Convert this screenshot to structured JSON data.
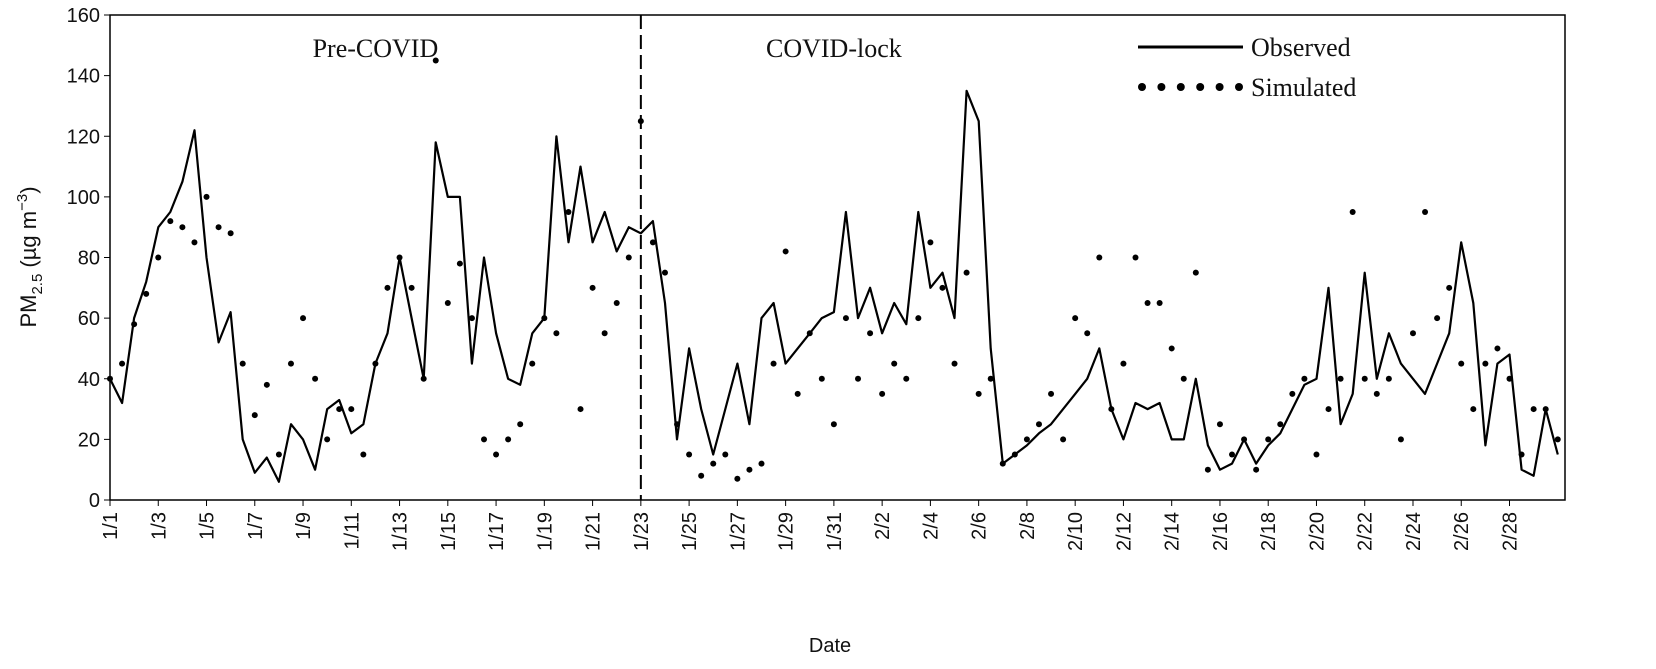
{
  "chart_data": {
    "type": "line",
    "x_label": "Date",
    "y_label": [
      "PM",
      "2.5",
      " (µg m",
      "−3",
      ")"
    ],
    "annotations": [
      {
        "text": "Pre-COVID",
        "x": 12
      },
      {
        "text": "COVID-lock",
        "x": 31
      }
    ],
    "vline": 23,
    "legend": "top-right",
    "x": [
      1,
      1.5,
      2,
      2.5,
      3,
      3.5,
      4,
      4.5,
      5,
      5.5,
      6,
      6.5,
      7,
      7.5,
      8,
      8.5,
      9,
      9.5,
      10,
      10.5,
      11,
      11.5,
      12,
      12.5,
      13,
      13.5,
      14,
      14.5,
      15,
      15.5,
      16,
      16.5,
      17,
      17.5,
      18,
      18.5,
      19,
      19.5,
      20,
      20.5,
      21,
      21.5,
      22,
      22.5,
      23,
      23.5,
      24,
      24.5,
      25,
      25.5,
      26,
      26.5,
      27,
      27.5,
      28,
      28.5,
      29,
      29.5,
      30,
      30.5,
      31,
      31.5,
      32,
      32.5,
      33,
      33.5,
      34,
      34.5,
      35,
      35.5,
      36,
      36.5,
      37,
      37.5,
      38,
      38.5,
      39,
      39.5,
      40,
      40.5,
      41,
      41.5,
      42,
      42.5,
      43,
      43.5,
      44,
      44.5,
      45,
      45.5,
      46,
      46.5,
      47,
      47.5,
      48,
      48.5,
      49,
      49.5,
      50,
      50.5,
      51,
      51.5,
      52,
      52.5,
      53,
      53.5,
      54,
      54.5,
      55,
      55.5,
      56,
      56.5,
      57,
      57.5,
      58,
      58.5,
      59,
      59.5,
      60,
      60.5,
      61
    ],
    "series": [
      {
        "name": "Observed",
        "color": "#000000",
        "style": "line",
        "values": [
          40,
          32,
          60,
          72,
          90,
          95,
          105,
          122,
          80,
          52,
          62,
          20,
          9,
          14,
          6,
          25,
          20,
          10,
          30,
          33,
          22,
          25,
          45,
          55,
          80,
          60,
          40,
          118,
          100,
          100,
          45,
          80,
          55,
          40,
          38,
          55,
          60,
          120,
          85,
          110,
          85,
          95,
          82,
          90,
          88,
          92,
          65,
          20,
          50,
          30,
          15,
          30,
          45,
          25,
          60,
          65,
          45,
          50,
          55,
          60,
          62,
          95,
          60,
          70,
          55,
          65,
          58,
          95,
          70,
          75,
          60,
          135,
          125,
          50,
          12,
          15,
          18,
          22,
          25,
          30,
          35,
          40,
          50,
          30,
          20,
          32,
          30,
          32,
          20,
          20,
          40,
          18,
          10,
          12,
          20,
          12,
          18,
          22,
          30,
          38,
          40,
          70,
          25,
          35,
          75,
          40,
          55,
          45,
          40,
          35,
          45,
          55,
          85,
          65,
          18,
          45,
          48,
          10,
          8,
          30,
          15
        ]
      },
      {
        "name": "Simulated",
        "color": "#000000",
        "style": "dots",
        "values": [
          40,
          45,
          58,
          68,
          80,
          92,
          90,
          85,
          100,
          90,
          88,
          45,
          28,
          38,
          15,
          45,
          60,
          40,
          20,
          30,
          30,
          15,
          45,
          70,
          80,
          70,
          40,
          145,
          65,
          78,
          60,
          20,
          15,
          20,
          25,
          45,
          60,
          55,
          95,
          30,
          70,
          55,
          65,
          80,
          125,
          85,
          75,
          25,
          15,
          8,
          12,
          15,
          7,
          10,
          12,
          45,
          82,
          35,
          55,
          40,
          25,
          60,
          40,
          55,
          35,
          45,
          40,
          60,
          85,
          70,
          45,
          75,
          35,
          40,
          12,
          15,
          20,
          25,
          35,
          20,
          60,
          55,
          80,
          30,
          45,
          80,
          65,
          65,
          50,
          40,
          75,
          10,
          25,
          15,
          20,
          10,
          20,
          25,
          35,
          40,
          15,
          30,
          40,
          95,
          40,
          35,
          40,
          20,
          55,
          95,
          60,
          70,
          45,
          30,
          45,
          50,
          40,
          15,
          30,
          30,
          20
        ]
      }
    ],
    "xlim": [
      1,
      61.3
    ],
    "xticks": [
      {
        "value": 1,
        "label": "1/1"
      },
      {
        "value": 3,
        "label": "1/3"
      },
      {
        "value": 5,
        "label": "1/5"
      },
      {
        "value": 7,
        "label": "1/7"
      },
      {
        "value": 9,
        "label": "1/9"
      },
      {
        "value": 11,
        "label": "1/11"
      },
      {
        "value": 13,
        "label": "1/13"
      },
      {
        "value": 15,
        "label": "1/15"
      },
      {
        "value": 17,
        "label": "1/17"
      },
      {
        "value": 19,
        "label": "1/19"
      },
      {
        "value": 21,
        "label": "1/21"
      },
      {
        "value": 23,
        "label": "1/23"
      },
      {
        "value": 25,
        "label": "1/25"
      },
      {
        "value": 27,
        "label": "1/27"
      },
      {
        "value": 29,
        "label": "1/29"
      },
      {
        "value": 31,
        "label": "1/31"
      },
      {
        "value": 33,
        "label": "2/2"
      },
      {
        "value": 35,
        "label": "2/4"
      },
      {
        "value": 37,
        "label": "2/6"
      },
      {
        "value": 39,
        "label": "2/8"
      },
      {
        "value": 41,
        "label": "2/10"
      },
      {
        "value": 43,
        "label": "2/12"
      },
      {
        "value": 45,
        "label": "2/14"
      },
      {
        "value": 47,
        "label": "2/16"
      },
      {
        "value": 49,
        "label": "2/18"
      },
      {
        "value": 51,
        "label": "2/20"
      },
      {
        "value": 53,
        "label": "2/22"
      },
      {
        "value": 55,
        "label": "2/24"
      },
      {
        "value": 57,
        "label": "2/26"
      },
      {
        "value": 59,
        "label": "2/28"
      }
    ],
    "ylim": [
      0,
      160
    ],
    "yticks": [
      0,
      20,
      40,
      60,
      80,
      100,
      120,
      140,
      160
    ],
    "grid": false
  }
}
